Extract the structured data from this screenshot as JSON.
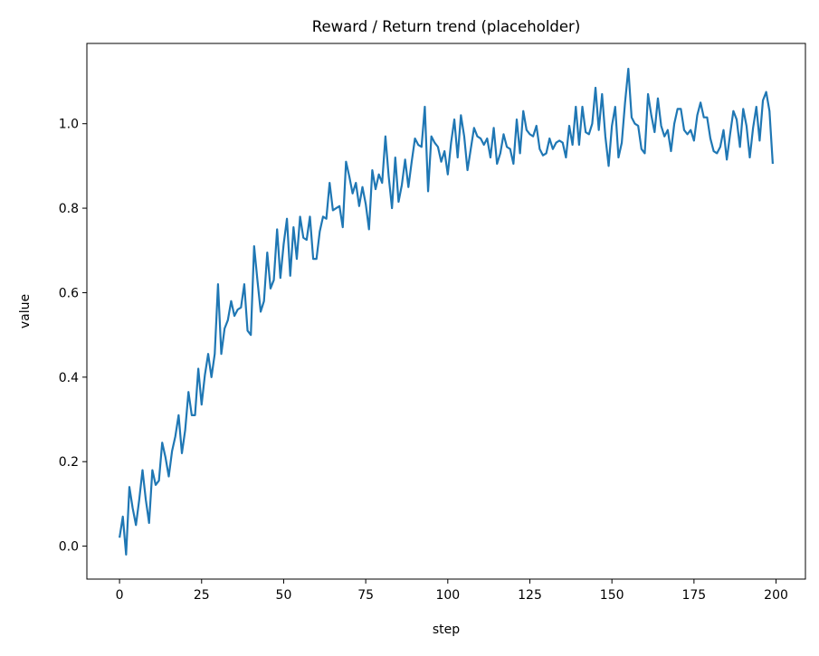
{
  "chart_data": {
    "type": "line",
    "title": "Reward / Return trend (placeholder)",
    "xlabel": "step",
    "ylabel": "value",
    "xlim": [
      -9.95,
      208.95
    ],
    "ylim": [
      -0.078,
      1.19
    ],
    "xticks": [
      0,
      25,
      50,
      75,
      100,
      125,
      150,
      175,
      200
    ],
    "yticks": [
      0.0,
      0.2,
      0.4,
      0.6,
      0.8,
      1.0
    ],
    "xtick_labels": [
      "0",
      "25",
      "50",
      "75",
      "100",
      "125",
      "150",
      "175",
      "200"
    ],
    "ytick_labels": [
      "0.0",
      "0.2",
      "0.4",
      "0.6",
      "0.8",
      "1.0"
    ],
    "grid": false,
    "series": [
      {
        "name": "value",
        "color": "#1f77b4",
        "values": [
          0.02,
          0.07,
          -0.02,
          0.14,
          0.09,
          0.05,
          0.11,
          0.18,
          0.11,
          0.055,
          0.18,
          0.145,
          0.155,
          0.245,
          0.21,
          0.165,
          0.225,
          0.26,
          0.31,
          0.22,
          0.275,
          0.365,
          0.31,
          0.31,
          0.42,
          0.335,
          0.405,
          0.455,
          0.4,
          0.455,
          0.62,
          0.455,
          0.515,
          0.535,
          0.58,
          0.545,
          0.56,
          0.565,
          0.62,
          0.51,
          0.5,
          0.71,
          0.63,
          0.555,
          0.58,
          0.695,
          0.61,
          0.63,
          0.75,
          0.635,
          0.715,
          0.775,
          0.64,
          0.755,
          0.68,
          0.78,
          0.73,
          0.725,
          0.78,
          0.68,
          0.68,
          0.745,
          0.78,
          0.775,
          0.86,
          0.795,
          0.8,
          0.805,
          0.755,
          0.91,
          0.875,
          0.835,
          0.86,
          0.805,
          0.85,
          0.81,
          0.75,
          0.89,
          0.845,
          0.88,
          0.86,
          0.97,
          0.875,
          0.8,
          0.92,
          0.815,
          0.855,
          0.915,
          0.85,
          0.91,
          0.965,
          0.95,
          0.945,
          1.04,
          0.84,
          0.97,
          0.955,
          0.945,
          0.91,
          0.935,
          0.88,
          0.955,
          1.01,
          0.92,
          1.02,
          0.97,
          0.89,
          0.94,
          0.99,
          0.97,
          0.965,
          0.95,
          0.965,
          0.92,
          0.99,
          0.905,
          0.93,
          0.975,
          0.945,
          0.94,
          0.905,
          1.01,
          0.93,
          1.03,
          0.985,
          0.975,
          0.97,
          0.995,
          0.94,
          0.925,
          0.93,
          0.965,
          0.94,
          0.955,
          0.96,
          0.955,
          0.92,
          0.995,
          0.95,
          1.04,
          0.95,
          1.04,
          0.98,
          0.975,
          1.0,
          1.085,
          0.985,
          1.07,
          0.97,
          0.9,
          0.995,
          1.04,
          0.92,
          0.955,
          1.05,
          1.13,
          1.015,
          1.0,
          0.995,
          0.94,
          0.93,
          1.07,
          1.02,
          0.98,
          1.06,
          0.995,
          0.97,
          0.985,
          0.935,
          1.0,
          1.035,
          1.035,
          0.985,
          0.975,
          0.985,
          0.96,
          1.02,
          1.05,
          1.015,
          1.015,
          0.965,
          0.935,
          0.93,
          0.945,
          0.985,
          0.915,
          0.975,
          1.03,
          1.01,
          0.945,
          1.035,
          0.995,
          0.92,
          0.99,
          1.04,
          0.96,
          1.055,
          1.075,
          1.03,
          0.905
        ]
      }
    ]
  }
}
